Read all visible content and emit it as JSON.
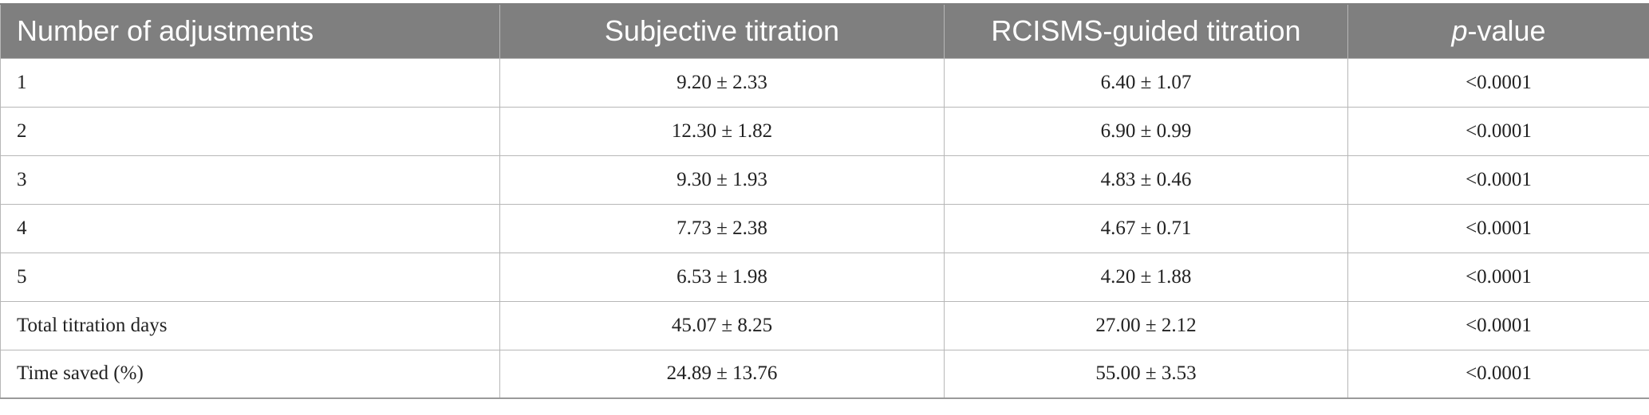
{
  "table": {
    "headers": {
      "col1": "Number of adjustments",
      "col2": "Subjective titration",
      "col3": "RCISMS-guided titration",
      "col4_italic": "p",
      "col4_rest": "-value"
    },
    "rows": [
      {
        "label": "1",
        "subjective": "9.20 ± 2.33",
        "rcisms": "6.40 ± 1.07",
        "p": "<0.0001"
      },
      {
        "label": "2",
        "subjective": "12.30 ± 1.82",
        "rcisms": "6.90 ± 0.99",
        "p": "<0.0001"
      },
      {
        "label": "3",
        "subjective": "9.30 ± 1.93",
        "rcisms": "4.83 ± 0.46",
        "p": "<0.0001"
      },
      {
        "label": "4",
        "subjective": "7.73 ± 2.38",
        "rcisms": "4.67 ± 0.71",
        "p": "<0.0001"
      },
      {
        "label": "5",
        "subjective": "6.53 ± 1.98",
        "rcisms": "4.20 ± 1.88",
        "p": "<0.0001"
      },
      {
        "label": "Total titration days",
        "subjective": "45.07 ± 8.25",
        "rcisms": "27.00 ± 2.12",
        "p": "<0.0001"
      },
      {
        "label": "Time saved (%)",
        "subjective": "24.89 ± 13.76",
        "rcisms": "55.00 ± 3.53",
        "p": "<0.0001"
      }
    ]
  }
}
